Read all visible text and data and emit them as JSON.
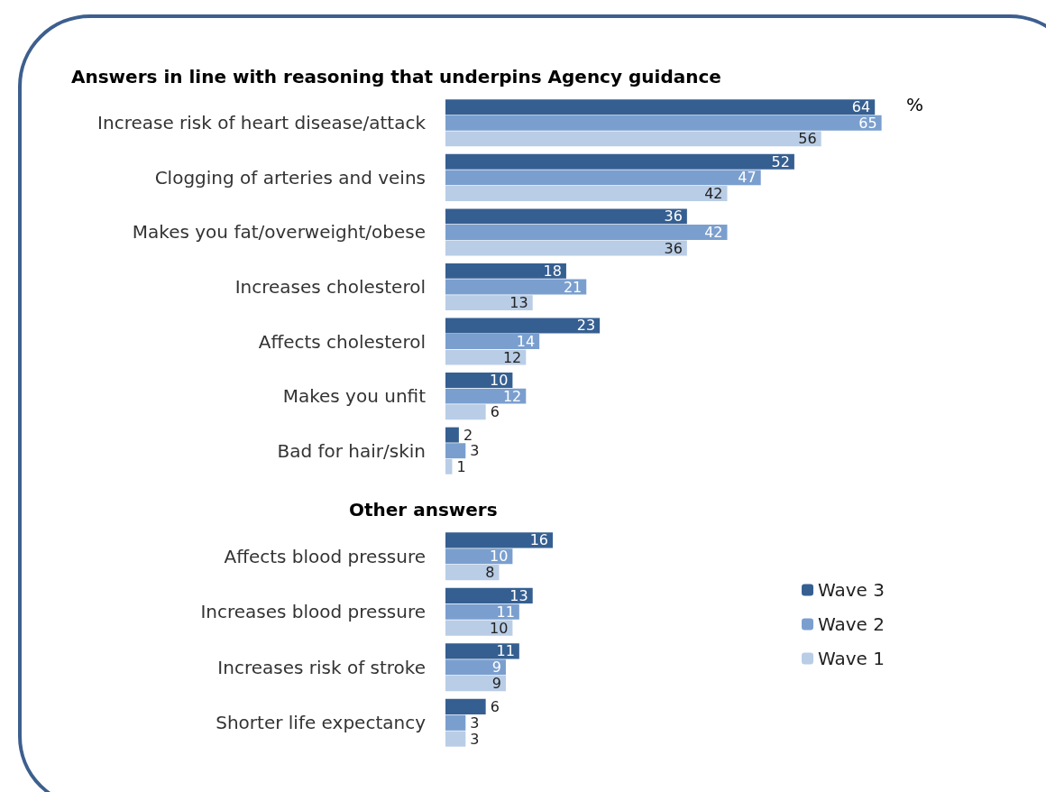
{
  "chart_data": [
    {
      "type": "bar",
      "orientation": "horizontal",
      "title": "Answers in line with reasoning that underpins Agency guidance",
      "categories": [
        "Increase risk of heart disease/attack",
        "Clogging of arteries and veins",
        "Makes you fat/overweight/obese",
        "Increases cholesterol",
        "Affects cholesterol",
        "Makes you unfit",
        "Bad for hair/skin"
      ],
      "series": [
        {
          "color": "#365f91",
          "values": [
            64,
            52,
            36,
            18,
            23,
            10,
            2
          ]
        },
        {
          "color": "#7a9fcf",
          "values": [
            65,
            47,
            42,
            21,
            14,
            12,
            3
          ]
        },
        {
          "color": "#b9cde6",
          "values": [
            56,
            42,
            36,
            13,
            12,
            6,
            1
          ]
        }
      ],
      "data_labels": true,
      "grid": false,
      "legend": false,
      "annotations": [
        "%"
      ]
    },
    {
      "type": "bar",
      "orientation": "horizontal",
      "title": "Other answers",
      "categories": [
        "Affects blood pressure",
        "Increases blood pressure",
        "Increases risk of stroke",
        "Shorter life expectancy"
      ],
      "series": [
        {
          "name": "Wave 3",
          "color": "#365f91",
          "values": [
            16,
            13,
            11,
            6
          ]
        },
        {
          "name": "Wave 2",
          "color": "#7a9fcf",
          "values": [
            10,
            11,
            9,
            3
          ]
        },
        {
          "name": "Wave 1",
          "color": "#b9cde6",
          "values": [
            8,
            10,
            9,
            3
          ]
        }
      ],
      "data_labels": true,
      "grid": false,
      "legend": "right"
    }
  ]
}
